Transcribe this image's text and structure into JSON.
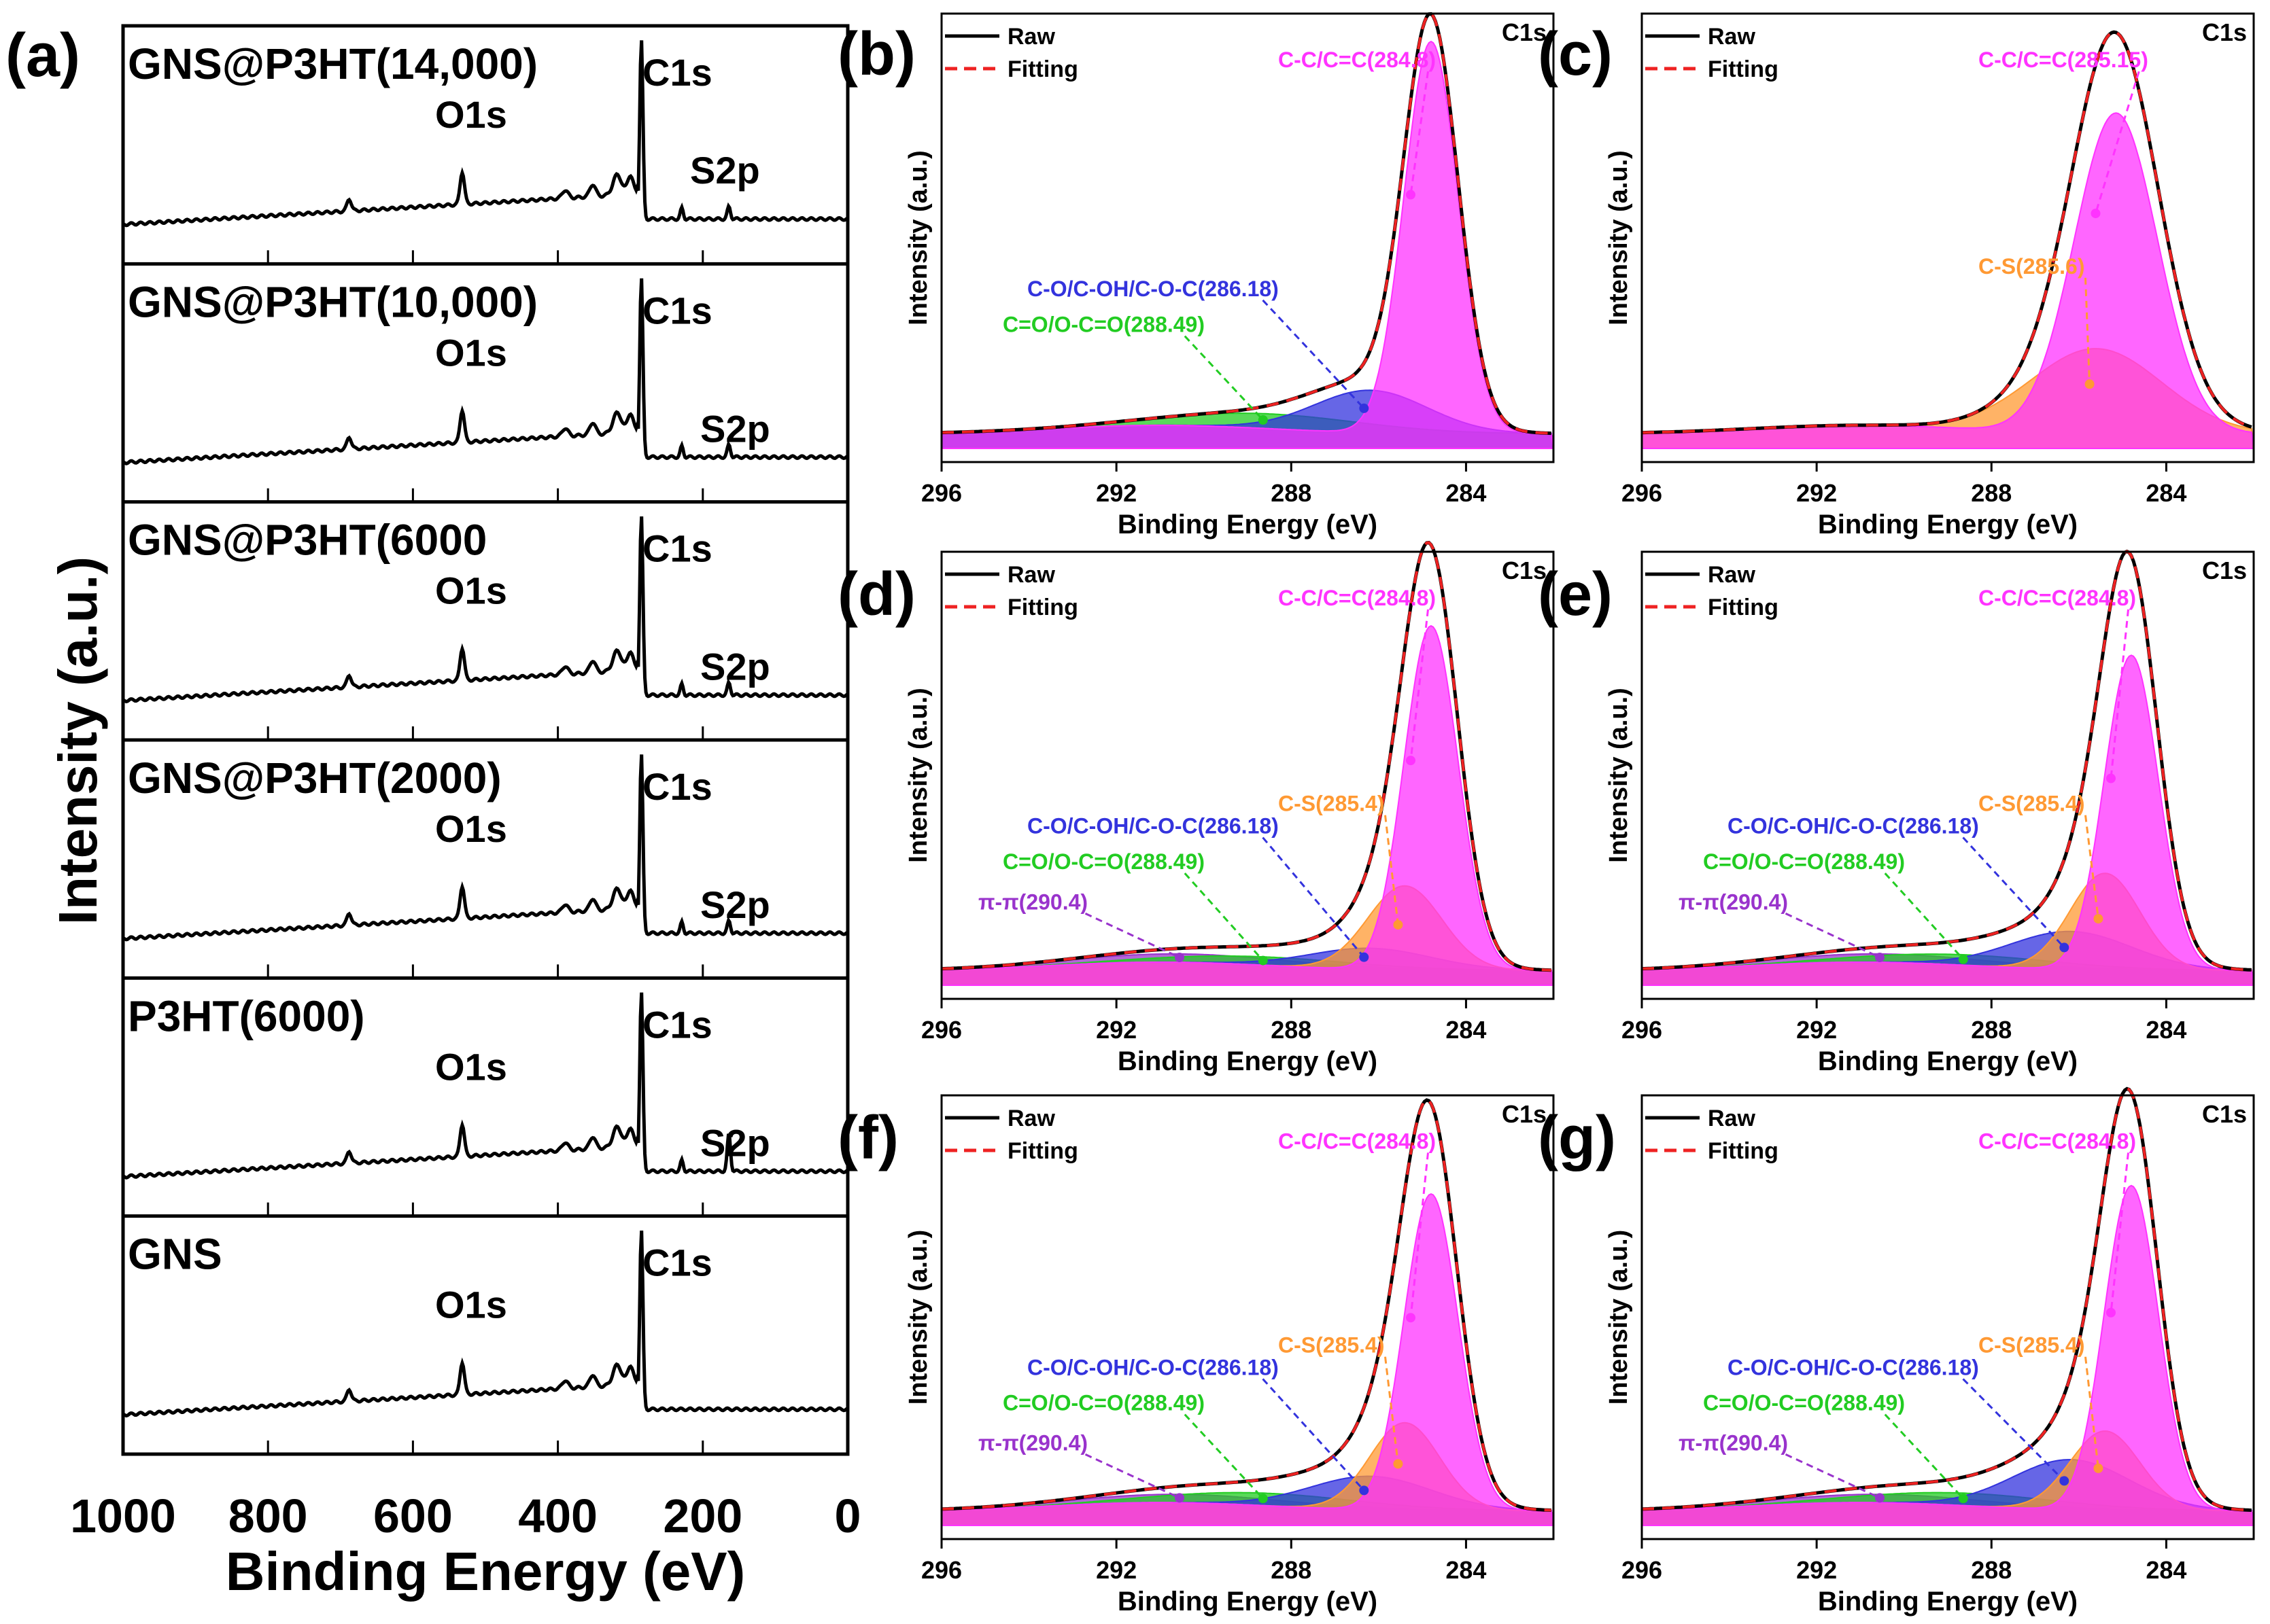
{
  "chart_data": [
    {
      "id": "a",
      "panel_label": "(a)",
      "type": "line",
      "title": "",
      "xlabel": "Binding Energy (eV)",
      "ylabel": "Intensity (a.u.)",
      "xlim": [
        1000,
        0
      ],
      "xticks": [
        "1000",
        "800",
        "600",
        "400",
        "200",
        "0"
      ],
      "xtick_values": [
        1000,
        800,
        600,
        400,
        200,
        0
      ],
      "stack": [
        {
          "name": "GNS@P3HT(14,000)",
          "peaks": {
            "C1s": 284.8,
            "O1s": 532,
            "S2p": 164
          }
        },
        {
          "name": "GNS@P3HT(10,000)",
          "peaks": {
            "C1s": 284.8,
            "O1s": 532,
            "S2p": 164
          }
        },
        {
          "name": "GNS@P3HT(6000",
          "peaks": {
            "C1s": 284.8,
            "O1s": 532,
            "S2p": 164
          }
        },
        {
          "name": "GNS@P3HT(2000)",
          "peaks": {
            "C1s": 284.8,
            "O1s": 532,
            "S2p": 164
          }
        },
        {
          "name": "P3HT(6000)",
          "peaks": {
            "C1s": 284.8,
            "O1s": 532,
            "S2p": 164
          }
        },
        {
          "name": "GNS",
          "peaks": {
            "C1s": 284.8,
            "O1s": 532
          }
        }
      ],
      "peak_labels": {
        "C1s": "C1s",
        "O1s": "O1s",
        "S2p": "S2p"
      }
    },
    {
      "id": "b",
      "panel_label": "(b)",
      "type": "area",
      "corner": "C1s",
      "xlabel": "Binding Energy (eV)",
      "ylabel": "Intensity (a.u.)",
      "xlim": [
        296,
        282
      ],
      "xticks": [
        "296",
        "292",
        "288",
        "284"
      ],
      "xtick_values": [
        296,
        292,
        288,
        284
      ],
      "legend": [
        "Raw",
        "Fitting"
      ],
      "components": [
        {
          "label": "C-C/C=C(284.8)",
          "center": 284.8,
          "height": 0.93,
          "width": 0.62,
          "color": "#ff33ff"
        },
        {
          "label": "C-O/C-OH/C-O-C(286.18)",
          "center": 286.18,
          "height": 0.1,
          "width": 1.3,
          "color": "#3333dd"
        },
        {
          "label": "C=O/O-C=O(288.49)",
          "center": 288.49,
          "height": 0.035,
          "width": 2.2,
          "color": "#22cc22"
        }
      ]
    },
    {
      "id": "c",
      "panel_label": "(c)",
      "type": "area",
      "corner": "C1s",
      "xlabel": "Binding Energy (eV)",
      "ylabel": "Intensity (a.u.)",
      "xlim": [
        296,
        282
      ],
      "xticks": [
        "296",
        "292",
        "288",
        "284"
      ],
      "xtick_values": [
        296,
        292,
        288,
        284
      ],
      "legend": [
        "Raw",
        "Fitting"
      ],
      "components": [
        {
          "label": "C-C/C=C(285.15)",
          "center": 285.15,
          "height": 0.76,
          "width": 0.95,
          "color": "#ff33ff"
        },
        {
          "label": "C-S(285.6)",
          "center": 285.6,
          "height": 0.2,
          "width": 1.5,
          "color": "#ff9933"
        }
      ]
    },
    {
      "id": "d",
      "panel_label": "(d)",
      "type": "area",
      "corner": "C1s",
      "xlabel": "Binding Energy (eV)",
      "ylabel": "Intensity (a.u.)",
      "xlim": [
        296,
        282
      ],
      "xticks": [
        "296",
        "292",
        "288",
        "284"
      ],
      "xtick_values": [
        296,
        292,
        288,
        284
      ],
      "legend": [
        "Raw",
        "Fitting"
      ],
      "components": [
        {
          "label": "C-C/C=C(284.8)",
          "center": 284.8,
          "height": 0.82,
          "width": 0.62,
          "color": "#ff33ff"
        },
        {
          "label": "C-S(285.4)",
          "center": 285.4,
          "height": 0.2,
          "width": 0.85,
          "color": "#ff9933"
        },
        {
          "label": "C-O/C-OH/C-O-C(286.18)",
          "center": 286.18,
          "height": 0.05,
          "width": 1.4,
          "color": "#3333dd"
        },
        {
          "label": "C=O/O-C=O(288.49)",
          "center": 288.49,
          "height": 0.02,
          "width": 2.2,
          "color": "#22cc22"
        },
        {
          "label": "π-π(290.4)",
          "center": 290.4,
          "height": 0.02,
          "width": 2.5,
          "color": "#9933cc"
        }
      ]
    },
    {
      "id": "e",
      "panel_label": "(e)",
      "type": "area",
      "corner": "C1s",
      "xlabel": "Binding Energy (eV)",
      "ylabel": "Intensity (a.u.)",
      "xlim": [
        296,
        282
      ],
      "xticks": [
        "296",
        "292",
        "288",
        "284"
      ],
      "xtick_values": [
        296,
        292,
        288,
        284
      ],
      "legend": [
        "Raw",
        "Fitting"
      ],
      "components": [
        {
          "label": "C-C/C=C(284.8)",
          "center": 284.8,
          "height": 0.75,
          "width": 0.62,
          "color": "#ff33ff"
        },
        {
          "label": "C-S(285.4)",
          "center": 285.4,
          "height": 0.23,
          "width": 0.8,
          "color": "#ff9933"
        },
        {
          "label": "C-O/C-OH/C-O-C(286.18)",
          "center": 286.18,
          "height": 0.09,
          "width": 1.4,
          "color": "#3333dd"
        },
        {
          "label": "C=O/O-C=O(288.49)",
          "center": 288.49,
          "height": 0.025,
          "width": 2.2,
          "color": "#22cc22"
        },
        {
          "label": "π-π(290.4)",
          "center": 290.4,
          "height": 0.02,
          "width": 2.5,
          "color": "#9933cc"
        }
      ]
    },
    {
      "id": "f",
      "panel_label": "(f)",
      "type": "area",
      "corner": "C1s",
      "xlabel": "Binding Energy (eV)",
      "ylabel": "Intensity (a.u.)",
      "xlim": [
        296,
        282
      ],
      "xticks": [
        "296",
        "292",
        "288",
        "284"
      ],
      "xtick_values": [
        296,
        292,
        288,
        284
      ],
      "legend": [
        "Raw",
        "Fitting"
      ],
      "components": [
        {
          "label": "C-C/C=C(284.8)",
          "center": 284.8,
          "height": 0.76,
          "width": 0.62,
          "color": "#ff33ff"
        },
        {
          "label": "C-S(285.4)",
          "center": 285.4,
          "height": 0.21,
          "width": 0.8,
          "color": "#ff9933"
        },
        {
          "label": "C-O/C-OH/C-O-C(286.18)",
          "center": 286.18,
          "height": 0.08,
          "width": 1.4,
          "color": "#3333dd"
        },
        {
          "label": "C=O/O-C=O(288.49)",
          "center": 288.49,
          "height": 0.03,
          "width": 2.2,
          "color": "#22cc22"
        },
        {
          "label": "π-π(290.4)",
          "center": 290.4,
          "height": 0.02,
          "width": 2.5,
          "color": "#9933cc"
        }
      ]
    },
    {
      "id": "g",
      "panel_label": "(g)",
      "type": "area",
      "corner": "C1s",
      "xlabel": "Binding Energy (eV)",
      "ylabel": "Intensity (a.u.)",
      "xlim": [
        296,
        282
      ],
      "xticks": [
        "296",
        "292",
        "288",
        "284"
      ],
      "xtick_values": [
        296,
        292,
        288,
        284
      ],
      "legend": [
        "Raw",
        "Fitting"
      ],
      "components": [
        {
          "label": "C-C/C=C(284.8)",
          "center": 284.8,
          "height": 0.78,
          "width": 0.62,
          "color": "#ff33ff"
        },
        {
          "label": "C-S(285.4)",
          "center": 285.4,
          "height": 0.19,
          "width": 0.8,
          "color": "#ff9933"
        },
        {
          "label": "C-O/C-OH/C-O-C(286.18)",
          "center": 286.18,
          "height": 0.12,
          "width": 1.35,
          "color": "#3333dd"
        },
        {
          "label": "C=O/O-C=O(288.49)",
          "center": 288.49,
          "height": 0.03,
          "width": 2.2,
          "color": "#22cc22"
        },
        {
          "label": "π-π(290.4)",
          "center": 290.4,
          "height": 0.02,
          "width": 2.5,
          "color": "#9933cc"
        }
      ]
    }
  ]
}
